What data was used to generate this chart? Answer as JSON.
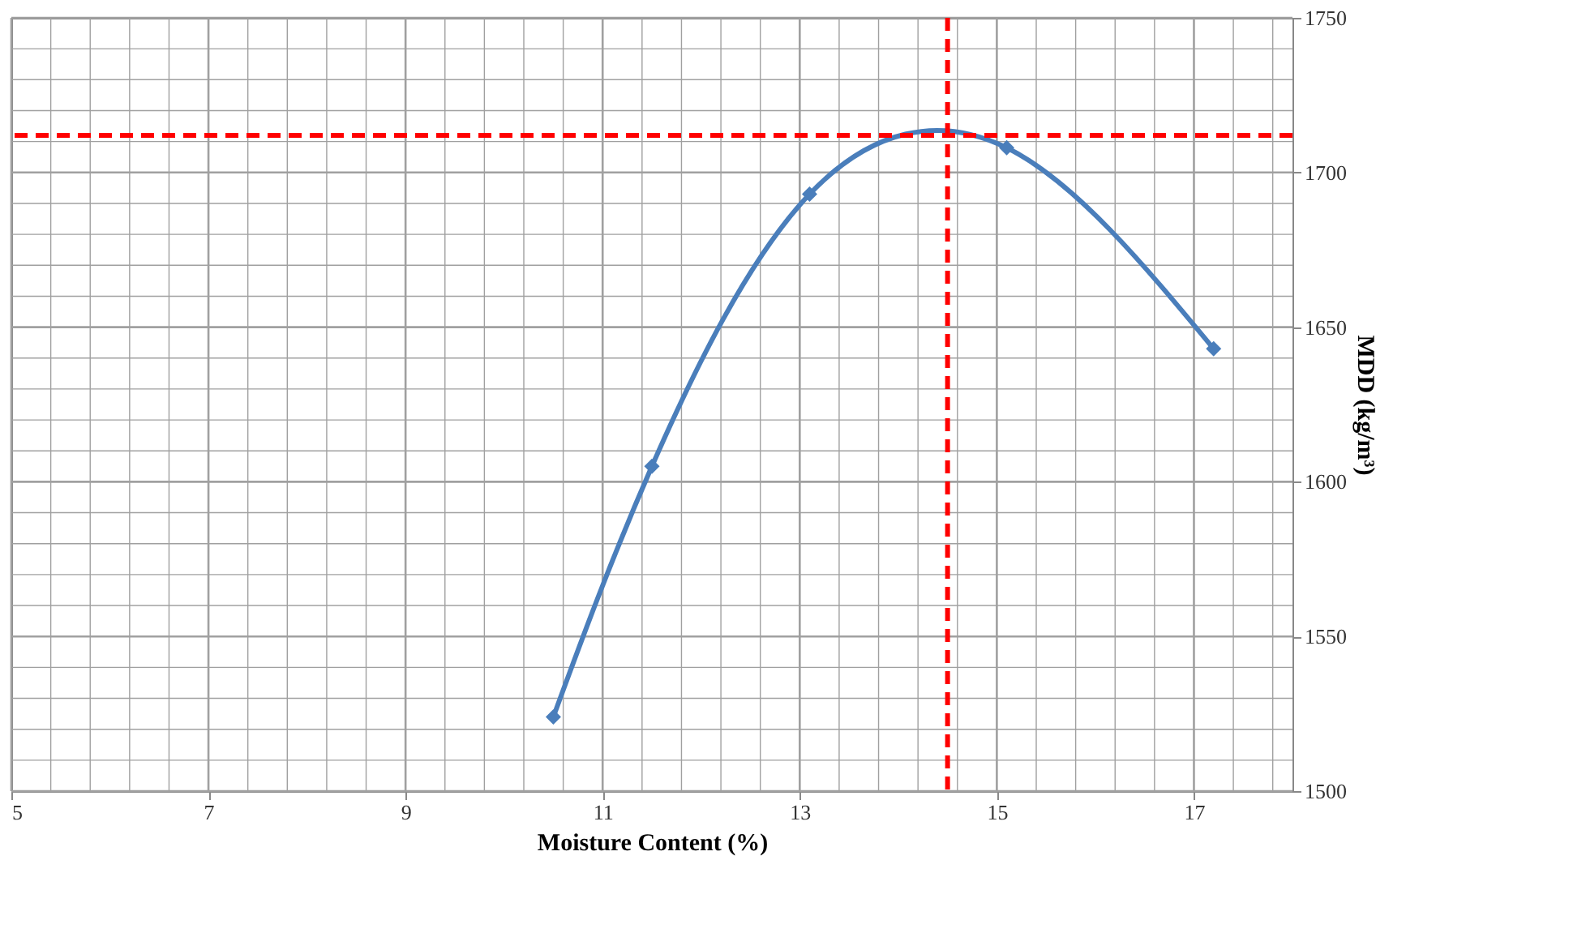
{
  "chart_data": {
    "type": "line",
    "xlabel": "Moisture Content (%)",
    "ylabel": "MDD (kg/m³)",
    "x": [
      10.5,
      11.5,
      13.1,
      15.1,
      17.2
    ],
    "series": [
      {
        "color": "#4a7ebb",
        "values": [
          1524,
          1605,
          1693,
          1708,
          1643
        ]
      }
    ],
    "marker": "diamond",
    "line_style": "solid",
    "grid": true,
    "xlim": [
      5,
      18
    ],
    "xticks": [
      5,
      {
        "value": 5.4,
        "label": null
      },
      {
        "value": 5.8,
        "label": null
      },
      {
        "value": 6.2,
        "label": null
      },
      {
        "value": 6.6,
        "label": null
      },
      7,
      {
        "value": 7.4,
        "label": null
      },
      {
        "value": 7.8,
        "label": null
      },
      {
        "value": 8.2,
        "label": null
      },
      {
        "value": 8.6,
        "label": null
      },
      9,
      {
        "value": 9.4,
        "label": null
      },
      {
        "value": 9.8,
        "label": null
      },
      {
        "value": 10.2,
        "label": null
      },
      {
        "value": 10.6,
        "label": null
      },
      11,
      {
        "value": 11.4,
        "label": null
      },
      {
        "value": 11.8,
        "label": null
      },
      {
        "value": 12.2,
        "label": null
      },
      {
        "value": 12.6,
        "label": null
      },
      13,
      {
        "value": 13.4,
        "label": null
      },
      {
        "value": 13.8,
        "label": null
      },
      {
        "value": 14.2,
        "label": null
      },
      {
        "value": 14.6,
        "label": null
      },
      15,
      {
        "value": 15.4,
        "label": null
      },
      {
        "value": 15.8,
        "label": null
      },
      {
        "value": 16.2,
        "label": null
      },
      {
        "value": 16.6,
        "label": null
      },
      17,
      {
        "value": 17.4,
        "label": null
      },
      {
        "value": 17.8,
        "label": null
      }
    ],
    "ylim": [
      1500,
      1750
    ],
    "yticks": [
      1500,
      {
        "value": 1510,
        "label": null
      },
      {
        "value": 1520,
        "label": null
      },
      {
        "value": 1530,
        "label": null
      },
      {
        "value": 1540,
        "label": null
      },
      1550,
      {
        "value": 1560,
        "label": null
      },
      {
        "value": 1570,
        "label": null
      },
      {
        "value": 1580,
        "label": null
      },
      {
        "value": 1590,
        "label": null
      },
      1600,
      {
        "value": 1610,
        "label": null
      },
      {
        "value": 1620,
        "label": null
      },
      {
        "value": 1630,
        "label": null
      },
      {
        "value": 1640,
        "label": null
      },
      1650,
      {
        "value": 1660,
        "label": null
      },
      {
        "value": 1670,
        "label": null
      },
      {
        "value": 1680,
        "label": null
      },
      {
        "value": 1690,
        "label": null
      },
      1700,
      {
        "value": 1710,
        "label": null
      },
      {
        "value": 1720,
        "label": null
      },
      {
        "value": 1730,
        "label": null
      },
      {
        "value": 1740,
        "label": null
      },
      1750
    ],
    "ref_lines": [
      {
        "axis": "y",
        "value": 1712,
        "color": "#ff0000",
        "line_style": "dashed"
      },
      {
        "axis": "x",
        "value": 14.5,
        "color": "#ff0000",
        "line_style": "dashed"
      }
    ]
  }
}
